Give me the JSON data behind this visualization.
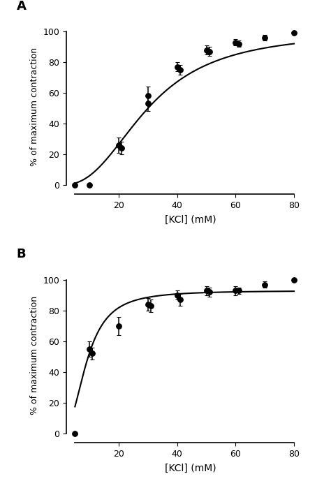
{
  "panel_A": {
    "label": "A",
    "x_data": [
      5,
      10,
      20,
      21,
      30,
      30,
      40,
      41,
      50,
      51,
      60,
      61,
      70,
      80
    ],
    "y_data": [
      0,
      0,
      26,
      24,
      58,
      53,
      77,
      75,
      88,
      87,
      93,
      92,
      96,
      99
    ],
    "y_err": [
      0,
      0,
      5,
      4,
      6,
      5,
      3,
      3,
      3,
      3,
      2,
      2,
      2,
      0
    ],
    "xlabel": "[KCl] (mM)",
    "ylabel": "% of maximum contraction",
    "xlim": [
      2,
      87
    ],
    "ylim": [
      -6,
      108
    ],
    "xticks": [
      20,
      40,
      60,
      80
    ],
    "yticks": [
      0,
      20,
      40,
      60,
      80,
      100
    ],
    "x_spine_min": 5,
    "x_spine_max": 80,
    "hill_Emax": 100,
    "hill_EC50": 30,
    "hill_n": 2.5
  },
  "panel_B": {
    "label": "B",
    "x_data": [
      5,
      10,
      11,
      20,
      30,
      31,
      40,
      41,
      50,
      51,
      60,
      61,
      70,
      80
    ],
    "y_data": [
      0,
      55,
      52,
      70,
      84,
      83,
      90,
      87,
      93,
      92,
      93,
      93,
      97,
      100
    ],
    "y_err": [
      0,
      5,
      4,
      6,
      4,
      4,
      3,
      4,
      3,
      3,
      3,
      2,
      2,
      0
    ],
    "xlabel": "[KCl] (mM)",
    "ylabel": "% of maximum contraction",
    "xlim": [
      2,
      87
    ],
    "ylim": [
      -6,
      108
    ],
    "xticks": [
      20,
      40,
      60,
      80
    ],
    "yticks": [
      0,
      20,
      40,
      60,
      80,
      100
    ],
    "x_spine_min": 5,
    "x_spine_max": 80,
    "hill_Emax": 93,
    "hill_EC50": 9,
    "hill_n": 2.5
  },
  "marker_color": "#000000",
  "line_color": "#000000",
  "marker_size": 5.5,
  "line_width": 1.5,
  "capsize": 2.5,
  "elinewidth": 1.1
}
